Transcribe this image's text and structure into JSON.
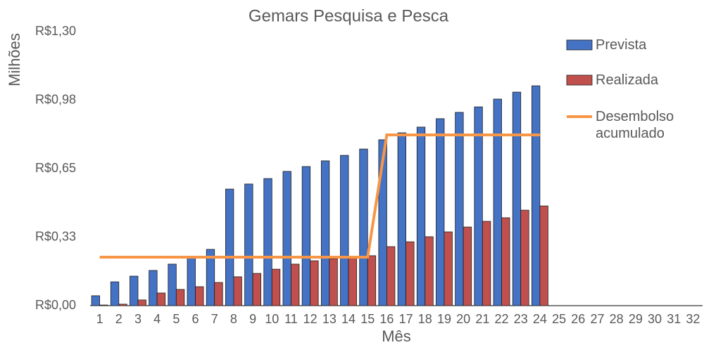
{
  "chart_data": {
    "type": "bar",
    "title": "Gemars Pesquisa e Pesca",
    "y_label": "Milhões",
    "x_label": "Mês",
    "categories": [
      "1",
      "2",
      "3",
      "4",
      "5",
      "6",
      "7",
      "8",
      "9",
      "10",
      "11",
      "12",
      "13",
      "14",
      "15",
      "16",
      "17",
      "18",
      "19",
      "20",
      "21",
      "22",
      "23",
      "24",
      "25",
      "26",
      "27",
      "28",
      "29",
      "30",
      "31",
      "32"
    ],
    "series": [
      {
        "name": "Prevista",
        "color": "#4472c4",
        "type": "bar",
        "values": [
          0.047,
          0.113,
          0.14,
          0.167,
          0.197,
          0.233,
          0.267,
          0.553,
          0.577,
          0.603,
          0.637,
          0.66,
          0.687,
          0.713,
          0.743,
          0.787,
          0.82,
          0.847,
          0.887,
          0.917,
          0.943,
          0.98,
          1.013,
          1.043,
          null,
          null,
          null,
          null,
          null,
          null,
          null,
          null
        ]
      },
      {
        "name": "Realizada",
        "color": "#c0504d",
        "type": "bar",
        "values": [
          0.003,
          0.007,
          0.027,
          0.06,
          0.077,
          0.09,
          0.11,
          0.137,
          0.153,
          0.173,
          0.197,
          0.213,
          0.223,
          0.23,
          0.237,
          0.28,
          0.303,
          0.327,
          0.35,
          0.373,
          0.4,
          0.417,
          0.453,
          0.473,
          null,
          null,
          null,
          null,
          null,
          null,
          null,
          null
        ]
      },
      {
        "name": "Desembolso acumulado",
        "color": "#f79646",
        "type": "line",
        "values": [
          0.23,
          0.23,
          0.23,
          0.23,
          0.23,
          0.23,
          0.23,
          0.23,
          0.23,
          0.23,
          0.23,
          0.23,
          0.23,
          0.23,
          0.23,
          0.81,
          0.81,
          0.81,
          0.81,
          0.81,
          0.81,
          0.81,
          0.81,
          0.81,
          null,
          null,
          null,
          null,
          null,
          null,
          null,
          null
        ]
      }
    ],
    "ylim": [
      0,
      1.3
    ],
    "yticks": [
      {
        "value": 0,
        "label": "R$0,00"
      },
      {
        "value": 0.325,
        "label": "R$0,33"
      },
      {
        "value": 0.65,
        "label": "R$0,65"
      },
      {
        "value": 0.975,
        "label": "R$0,98"
      },
      {
        "value": 1.3,
        "label": "R$1,30"
      }
    ],
    "legend": "right"
  }
}
